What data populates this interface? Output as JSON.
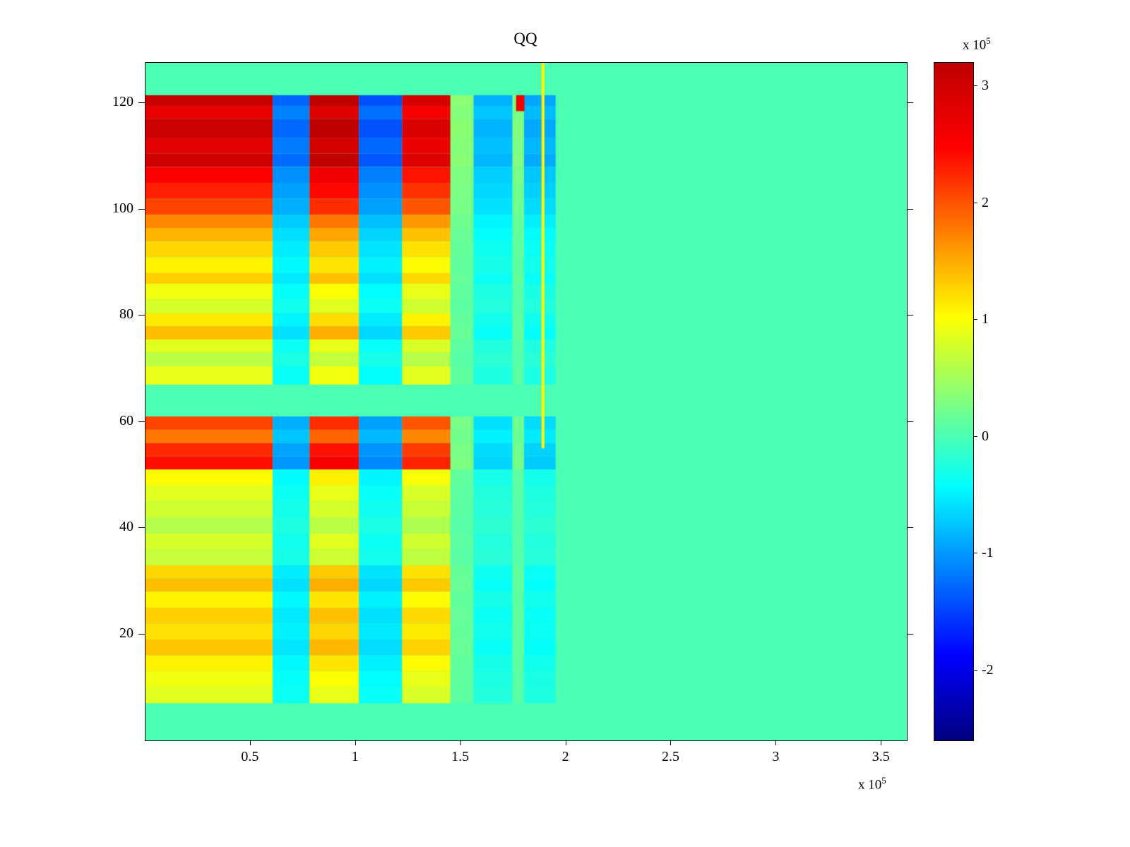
{
  "title": "QQ",
  "chart_data": {
    "type": "heatmap",
    "title": "QQ",
    "value_units": "1e5",
    "colormap": "jet",
    "x_range": [
      0,
      3.62
    ],
    "y_range": [
      0,
      127.6
    ],
    "clim": [
      -2.6,
      3.2
    ],
    "background_value": 0,
    "x_ticks": {
      "values": [
        0.5,
        1,
        1.5,
        2,
        2.5,
        3,
        3.5
      ],
      "labels": [
        "0.5",
        "1",
        "1.5",
        "2",
        "2.5",
        "3",
        "3.5"
      ]
    },
    "y_ticks": {
      "values": [
        20,
        40,
        60,
        80,
        100,
        120
      ],
      "labels": [
        "20",
        "40",
        "60",
        "80",
        "100",
        "120"
      ]
    },
    "x_exponent": {
      "label": "x 10",
      "power": "5"
    },
    "colorbar": {
      "tick_values": [
        3,
        2,
        1,
        0,
        -1,
        -2
      ],
      "tick_labels": [
        "3",
        "2",
        "1",
        "0",
        "-1",
        "-2"
      ],
      "exponent": {
        "label": "x 10",
        "power": "5"
      }
    },
    "columns": [
      {
        "x0": 0.0,
        "x1": 0.605,
        "factor": 1.0
      },
      {
        "x0": 0.605,
        "x1": 0.78,
        "factor": -0.42
      },
      {
        "x0": 0.78,
        "x1": 1.015,
        "factor": 1.06
      },
      {
        "x0": 1.015,
        "x1": 1.22,
        "factor": -0.46
      },
      {
        "x0": 1.22,
        "x1": 1.45,
        "factor": 0.95
      },
      {
        "x0": 1.45,
        "x1": 1.56,
        "factor": 0.12
      },
      {
        "x0": 1.56,
        "x1": 1.745,
        "factor": -0.28
      },
      {
        "x0": 1.745,
        "x1": 1.8,
        "factor": 0.1
      },
      {
        "x0": 1.8,
        "x1": 1.95,
        "factor": -0.3
      }
    ],
    "row_bands": [
      {
        "y0": 119.5,
        "y1": 121.5,
        "value": 3.1
      },
      {
        "y0": 117,
        "y1": 119.5,
        "value": 2.7
      },
      {
        "y0": 113.5,
        "y1": 117,
        "value": 3.05
      },
      {
        "y0": 110.5,
        "y1": 113.5,
        "value": 2.8
      },
      {
        "y0": 108,
        "y1": 110.5,
        "value": 3.0
      },
      {
        "y0": 105,
        "y1": 108,
        "value": 2.5
      },
      {
        "y0": 102,
        "y1": 105,
        "value": 2.3
      },
      {
        "y0": 99,
        "y1": 102,
        "value": 2.1
      },
      {
        "y0": 96.5,
        "y1": 99,
        "value": 1.7
      },
      {
        "y0": 94,
        "y1": 96.5,
        "value": 1.45
      },
      {
        "y0": 91,
        "y1": 94,
        "value": 1.25
      },
      {
        "y0": 88,
        "y1": 91,
        "value": 1.1
      },
      {
        "y0": 86,
        "y1": 88,
        "value": 1.3
      },
      {
        "y0": 83,
        "y1": 86,
        "value": 0.95
      },
      {
        "y0": 80.5,
        "y1": 83,
        "value": 0.8
      },
      {
        "y0": 78,
        "y1": 80.5,
        "value": 1.15
      },
      {
        "y0": 75.5,
        "y1": 78,
        "value": 1.4
      },
      {
        "y0": 73,
        "y1": 75.5,
        "value": 0.85
      },
      {
        "y0": 70.5,
        "y1": 73,
        "value": 0.65
      },
      {
        "y0": 67,
        "y1": 70.5,
        "value": 0.9
      },
      {
        "y0": 58.5,
        "y1": 61,
        "value": 2.1
      },
      {
        "y0": 56,
        "y1": 58.5,
        "value": 1.8
      },
      {
        "y0": 53.5,
        "y1": 56,
        "value": 2.25
      },
      {
        "y0": 51,
        "y1": 53.5,
        "value": 2.4
      },
      {
        "y0": 48,
        "y1": 51,
        "value": 1.05
      },
      {
        "y0": 45,
        "y1": 48,
        "value": 0.85
      },
      {
        "y0": 42,
        "y1": 45,
        "value": 0.75
      },
      {
        "y0": 39,
        "y1": 42,
        "value": 0.6
      },
      {
        "y0": 36,
        "y1": 39,
        "value": 0.8
      },
      {
        "y0": 33,
        "y1": 36,
        "value": 0.7
      },
      {
        "y0": 30.5,
        "y1": 33,
        "value": 1.25
      },
      {
        "y0": 28,
        "y1": 30.5,
        "value": 1.4
      },
      {
        "y0": 25,
        "y1": 28,
        "value": 1.1
      },
      {
        "y0": 22,
        "y1": 25,
        "value": 1.3
      },
      {
        "y0": 19,
        "y1": 22,
        "value": 1.2
      },
      {
        "y0": 16,
        "y1": 19,
        "value": 1.35
      },
      {
        "y0": 13,
        "y1": 16,
        "value": 1.1
      },
      {
        "y0": 10,
        "y1": 13,
        "value": 0.95
      },
      {
        "y0": 7,
        "y1": 10,
        "value": 0.85
      }
    ],
    "overlays": [
      {
        "name": "yellow-vertical-line",
        "x0": 1.883,
        "x1": 1.897,
        "y0": 55,
        "y1": 127.6,
        "value": 1.1
      },
      {
        "name": "red-top-patch",
        "x0": 1.762,
        "x1": 1.802,
        "y0": 118.5,
        "y1": 121.5,
        "value": 2.6
      }
    ]
  }
}
